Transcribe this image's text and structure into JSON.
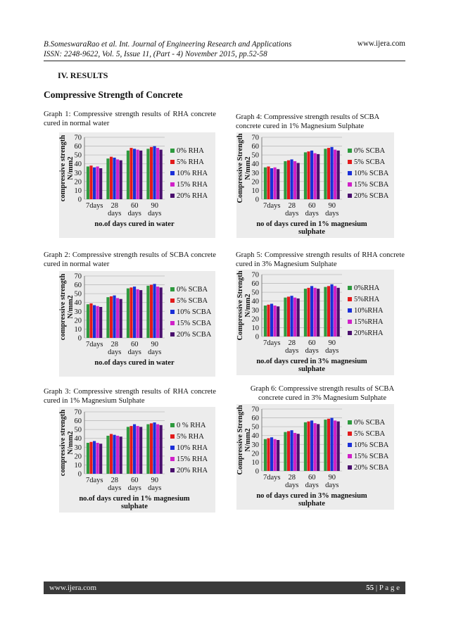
{
  "header": {
    "line1": "B.SomeswaraRao et al. Int. Journal of Engineering Research and Applications",
    "line2": "ISSN: 2248-9622, Vol. 5, Issue 11, (Part - 4) November 2015, pp.52-58",
    "website": "www.ijera.com"
  },
  "section_title": "IV. RESULTS",
  "subsection_title": "Compressive Strength of Concrete",
  "captions": {
    "g1": "Graph 1: Compressive strength results of RHA concrete cured in normal water",
    "g2": "Graph 2: Compressive strength results of SCBA concrete cured in normal water",
    "g3": "Graph 3: Compressive strength results of RHA concrete cured in 1% Magnesium Sulphate",
    "g4": "Graph 4: Compressive strength results of SCBA concrete cured in 1% Magnesium Sulphate",
    "g5": "Graph 5: Compressive strength results of RHA concrete cured in 3% Magnesium Sulphate",
    "g6": "Graph 6: Compressive strength results of SCBA concrete cured in 3% Magnesium Sulphate"
  },
  "footer": {
    "website": "www.ijera.com",
    "page": "55",
    "page_suffix": " | P a g e"
  },
  "colors": {
    "series": [
      "#2e9a3e",
      "#e21b1b",
      "#1a2fd8",
      "#d020c8",
      "#4a0f6e"
    ],
    "plot_bg": "#ececec",
    "grid": "#bdbdbd"
  },
  "chart_data": [
    {
      "id": "g1",
      "type": "bar",
      "categories": [
        "7days",
        "28 days",
        "60 days",
        "90 days"
      ],
      "series": [
        {
          "name": "0% RHA",
          "values": [
            37,
            46,
            55,
            57
          ]
        },
        {
          "name": "5% RHA",
          "values": [
            38,
            48,
            58,
            59
          ]
        },
        {
          "name": "10% RHA",
          "values": [
            36,
            47,
            57,
            60
          ]
        },
        {
          "name": "15% RHA",
          "values": [
            37,
            45,
            56,
            58
          ]
        },
        {
          "name": "20% RHA",
          "values": [
            35,
            44,
            55,
            56
          ]
        }
      ],
      "ylabel": "compressive strength N/mm2",
      "xlabel": "no.of days cured in water",
      "ylim": [
        0,
        70
      ],
      "yticks": [
        0,
        10,
        20,
        30,
        40,
        50,
        60,
        70
      ],
      "grid": true,
      "legend": "right"
    },
    {
      "id": "g2",
      "type": "bar",
      "categories": [
        "7days",
        "28 days",
        "60 days",
        "90 days"
      ],
      "series": [
        {
          "name": "0% SCBA",
          "values": [
            38,
            46,
            56,
            59
          ]
        },
        {
          "name": "5% SCBA",
          "values": [
            39,
            47,
            57,
            60
          ]
        },
        {
          "name": "10% SCBA",
          "values": [
            37,
            48,
            58,
            61
          ]
        },
        {
          "name": "15% SCBA",
          "values": [
            36,
            45,
            55,
            58
          ]
        },
        {
          "name": "20% SCBA",
          "values": [
            35,
            44,
            54,
            57
          ]
        }
      ],
      "ylabel": "compressive strength N/mm2",
      "xlabel": "no.of days cured in water",
      "ylim": [
        0,
        70
      ],
      "yticks": [
        0,
        10,
        20,
        30,
        40,
        50,
        60,
        70
      ],
      "grid": true,
      "legend": "right"
    },
    {
      "id": "g3",
      "type": "bar",
      "categories": [
        "7days",
        "28 days",
        "60 days",
        "90 days"
      ],
      "series": [
        {
          "name": "0 % RHA",
          "values": [
            35,
            43,
            53,
            56
          ]
        },
        {
          "name": "5% RHA",
          "values": [
            36,
            45,
            54,
            57
          ]
        },
        {
          "name": "10% RHA",
          "values": [
            37,
            44,
            56,
            58
          ]
        },
        {
          "name": "15% RHA",
          "values": [
            35,
            43,
            54,
            56
          ]
        },
        {
          "name": "20% RHA",
          "values": [
            34,
            42,
            53,
            55
          ]
        }
      ],
      "ylabel": "compressive strength N/mm2",
      "xlabel": "no.of days cured in 1% magnesium sulphate",
      "ylim": [
        0,
        70
      ],
      "yticks": [
        0,
        10,
        20,
        30,
        40,
        50,
        60,
        70
      ],
      "grid": true,
      "legend": "right"
    },
    {
      "id": "g4",
      "type": "bar",
      "categories": [
        "7days",
        "28 days",
        "60 days",
        "90 days"
      ],
      "series": [
        {
          "name": "0% SCBA",
          "values": [
            36,
            43,
            53,
            57
          ]
        },
        {
          "name": "5% SCBA",
          "values": [
            37,
            44,
            54,
            58
          ]
        },
        {
          "name": "10% SCBA",
          "values": [
            35,
            45,
            55,
            59
          ]
        },
        {
          "name": "15% SCBA",
          "values": [
            36,
            43,
            52,
            56
          ]
        },
        {
          "name": "20% SCBA",
          "values": [
            34,
            41,
            51,
            55
          ]
        }
      ],
      "ylabel": "Compressive Strength N/mm2",
      "xlabel": "no of days cured in 1% magnesium sulphate",
      "ylim": [
        0,
        70
      ],
      "yticks": [
        0,
        10,
        20,
        30,
        40,
        50,
        60,
        70
      ],
      "grid": true,
      "legend": "right"
    },
    {
      "id": "g5",
      "type": "bar",
      "categories": [
        "7days",
        "28 days",
        "60 days",
        "90 days"
      ],
      "series": [
        {
          "name": "0%RHA",
          "values": [
            35,
            44,
            54,
            56
          ]
        },
        {
          "name": "5%RHA",
          "values": [
            36,
            45,
            55,
            57
          ]
        },
        {
          "name": "10%RHA",
          "values": [
            37,
            46,
            57,
            59
          ]
        },
        {
          "name": "15%RHA",
          "values": [
            35,
            44,
            55,
            57
          ]
        },
        {
          "name": "20%RHA",
          "values": [
            34,
            43,
            54,
            55
          ]
        }
      ],
      "ylabel": "Compressive Strength N/mm2",
      "xlabel": "no.of days cured in 3% magnesium sulphate",
      "ylim": [
        0,
        70
      ],
      "yticks": [
        0,
        10,
        20,
        30,
        40,
        50,
        60,
        70
      ],
      "grid": true,
      "legend": "right"
    },
    {
      "id": "g6",
      "type": "bar",
      "categories": [
        "7days",
        "28 days",
        "60 days",
        "90 days"
      ],
      "series": [
        {
          "name": "0% SCBA",
          "values": [
            36,
            44,
            55,
            58
          ]
        },
        {
          "name": "5% SCBA",
          "values": [
            37,
            45,
            56,
            59
          ]
        },
        {
          "name": "10% SCBA",
          "values": [
            38,
            46,
            57,
            60
          ]
        },
        {
          "name": "15% SCBA",
          "values": [
            36,
            43,
            54,
            57
          ]
        },
        {
          "name": "20% SCBA",
          "values": [
            35,
            42,
            53,
            56
          ]
        }
      ],
      "ylabel": "Compressive Strength N/mm2",
      "xlabel": "no of days cured in 3% magnesium sulphate",
      "ylim": [
        0,
        70
      ],
      "yticks": [
        0,
        10,
        20,
        30,
        40,
        50,
        60,
        70
      ],
      "grid": true,
      "legend": "right"
    }
  ]
}
